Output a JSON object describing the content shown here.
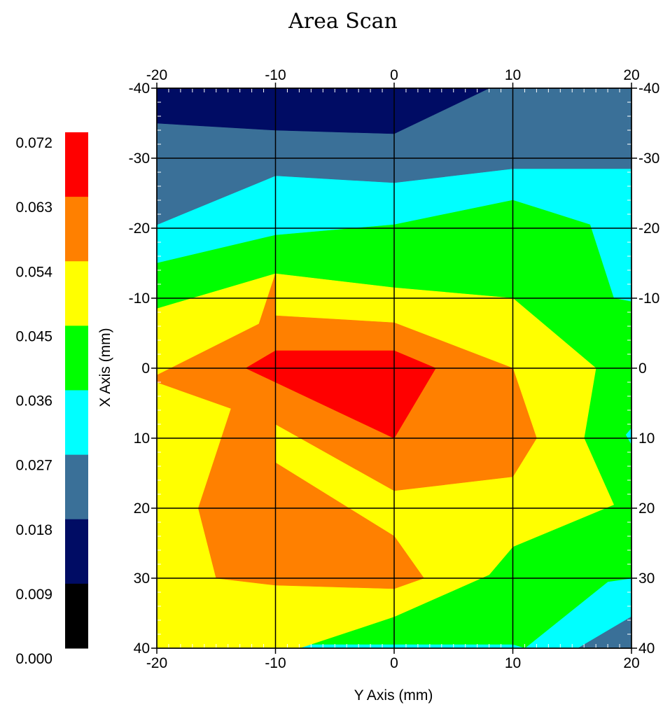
{
  "chart_data": {
    "type": "heatmap",
    "subtype": "filled-contour",
    "title": "Area Scan",
    "xlabel": "Y Axis (mm)",
    "ylabel": "X Axis (mm)",
    "xlim": [
      -20,
      20
    ],
    "ylim": [
      -40,
      40
    ],
    "y_inverted": true,
    "x_ticks": [
      "-20",
      "-10",
      "0",
      "10",
      "20"
    ],
    "y_ticks": [
      "-40",
      "-30",
      "-20",
      "-10",
      "0",
      "10",
      "20",
      "30",
      "40"
    ],
    "x_tick_values": [
      -20,
      -10,
      0,
      10,
      20
    ],
    "y_tick_values": [
      -40,
      -30,
      -20,
      -10,
      0,
      10,
      20,
      30,
      40
    ],
    "grid": true,
    "colorbar": {
      "placement": "left",
      "labels": [
        "0.072",
        "0.063",
        "0.054",
        "0.045",
        "0.036",
        "0.027",
        "0.018",
        "0.009",
        "0.000"
      ],
      "bands": [
        {
          "min": 0.063,
          "max": 0.072,
          "color": "#ff0000"
        },
        {
          "min": 0.054,
          "max": 0.063,
          "color": "#ff8000"
        },
        {
          "min": 0.045,
          "max": 0.054,
          "color": "#ffff00"
        },
        {
          "min": 0.036,
          "max": 0.045,
          "color": "#00ff00"
        },
        {
          "min": 0.027,
          "max": 0.036,
          "color": "#00ffff"
        },
        {
          "min": 0.018,
          "max": 0.027,
          "color": "#3a7098"
        },
        {
          "min": 0.009,
          "max": 0.018,
          "color": "#000c64"
        },
        {
          "min": 0.0,
          "max": 0.009,
          "color": "#000000"
        }
      ]
    },
    "regions": [
      {
        "level": "0.027-0.036",
        "color": "#00ffff",
        "points": [
          [
            -20,
            -40
          ],
          [
            20,
            -40
          ],
          [
            20,
            40
          ],
          [
            -20,
            40
          ]
        ]
      },
      {
        "level": "0.018-0.027",
        "color": "#3a7098",
        "points": [
          [
            -20,
            -40
          ],
          [
            20,
            -40
          ],
          [
            20,
            -28.5
          ],
          [
            10,
            -28.5
          ],
          [
            0,
            -26.5
          ],
          [
            -10,
            -27.5
          ],
          [
            -20,
            -20.5
          ]
        ]
      },
      {
        "level": "0.009-0.018",
        "color": "#000c64",
        "points": [
          [
            -20,
            -40
          ],
          [
            8,
            -40
          ],
          [
            0,
            -33.5
          ],
          [
            -10,
            -34
          ],
          [
            -20,
            -35
          ]
        ]
      },
      {
        "level": "0.018-0.027",
        "color": "#3a7098",
        "points": [
          [
            15.5,
            40
          ],
          [
            20,
            35.5
          ],
          [
            20,
            40
          ]
        ]
      },
      {
        "level": "0.036-0.045",
        "color": "#00ff00",
        "points": [
          [
            -20,
            -15
          ],
          [
            -10,
            -19
          ],
          [
            0,
            -20.5
          ],
          [
            10,
            -24
          ],
          [
            16.5,
            -20.5
          ],
          [
            18.5,
            -10
          ],
          [
            20,
            -9.5
          ],
          [
            20,
            8.5
          ],
          [
            19.5,
            9.5
          ],
          [
            20,
            11
          ],
          [
            20,
            30
          ],
          [
            18,
            30.5
          ],
          [
            11,
            40
          ],
          [
            -8,
            40
          ],
          [
            -20,
            40
          ],
          [
            -20,
            -15
          ]
        ]
      },
      {
        "level": "0.027-0.036",
        "color": "#00ffff",
        "points": [
          [
            -20,
            40
          ],
          [
            -20,
            39.5
          ],
          [
            -10,
            39.5
          ],
          [
            0,
            39.5
          ],
          [
            10,
            39.5
          ],
          [
            11,
            40
          ]
        ]
      },
      {
        "level": "0.045-0.054",
        "color": "#ffff00",
        "points": [
          [
            -20,
            -8.5
          ],
          [
            -10,
            -13.5
          ],
          [
            0,
            -11.5
          ],
          [
            10,
            -10
          ],
          [
            17,
            0
          ],
          [
            16,
            10
          ],
          [
            18.5,
            19.5
          ],
          [
            10,
            25.5
          ],
          [
            8,
            29.5
          ],
          [
            0,
            35.5
          ],
          [
            -8,
            40
          ],
          [
            -20,
            40
          ]
        ]
      },
      {
        "level": "0.054-0.063",
        "color": "#ff8000",
        "points": [
          [
            -20,
            1
          ],
          [
            -10,
            -7.5
          ],
          [
            0,
            -6.5
          ],
          [
            10,
            0
          ],
          [
            12,
            10
          ],
          [
            10,
            15.5
          ],
          [
            0,
            17.5
          ],
          [
            -10,
            8
          ],
          [
            -20,
            2
          ]
        ]
      },
      {
        "level": "0.054-0.063",
        "color": "#ff8000",
        "points": [
          [
            -10,
            -13.5
          ],
          [
            -16.5,
            20
          ],
          [
            -15,
            30
          ],
          [
            -10,
            31
          ],
          [
            0,
            31.5
          ],
          [
            2.5,
            30
          ],
          [
            0,
            24
          ],
          [
            -10,
            13.5
          ]
        ]
      },
      {
        "level": "0.063-0.072",
        "color": "#ff0000",
        "points": [
          [
            -12.5,
            0
          ],
          [
            -10,
            -2.5
          ],
          [
            0,
            -2.5
          ],
          [
            3.5,
            0
          ],
          [
            0,
            10
          ],
          [
            -10,
            2
          ],
          [
            -12.5,
            0
          ]
        ]
      }
    ]
  }
}
